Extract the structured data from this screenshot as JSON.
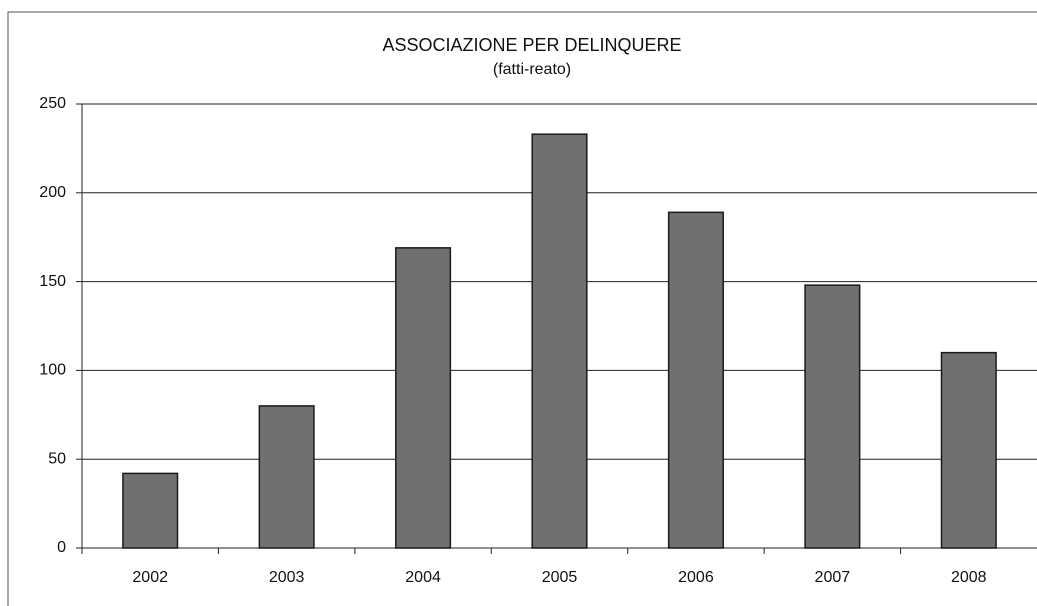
{
  "chart_data": {
    "type": "bar",
    "title": "ASSOCIAZIONE PER DELINQUERE",
    "subtitle": "(fatti-reato)",
    "categories": [
      "2002",
      "2003",
      "2004",
      "2005",
      "2006",
      "2007",
      "2008"
    ],
    "values": [
      42,
      80,
      169,
      233,
      189,
      148,
      110
    ],
    "color": "#707070",
    "ylim": [
      0,
      250
    ],
    "yticks": [
      0,
      50,
      100,
      150,
      200,
      250
    ],
    "grid": true
  }
}
